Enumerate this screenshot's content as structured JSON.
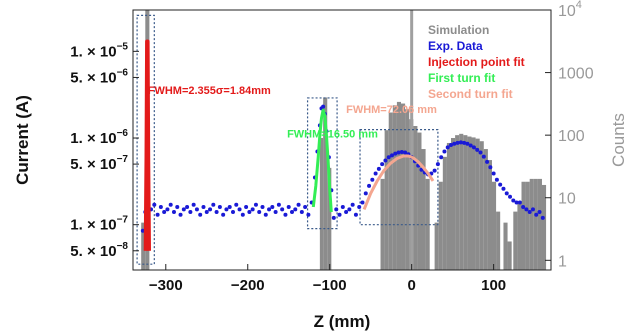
{
  "chart_data": {
    "type": "scatter",
    "xlabel": "Z (mm)",
    "ylabel_left": "Current (A)",
    "ylabel_right": "Counts",
    "xlim": [
      -340,
      170
    ],
    "ylim_left": [
      3e-08,
      3e-05
    ],
    "ylim_right": [
      0.7,
      10000
    ],
    "x_scale": "linear",
    "y_scale": "log",
    "grid": false,
    "legend_position": "top-right",
    "x_ticks": [
      {
        "value": -300,
        "label": "−300"
      },
      {
        "value": -200,
        "label": "−200"
      },
      {
        "value": -100,
        "label": "−100"
      },
      {
        "value": 0,
        "label": "0"
      },
      {
        "value": 100,
        "label": "100"
      }
    ],
    "y_ticks_left": [
      {
        "value": 1e-05,
        "mant": "1.",
        "sep": " × ",
        "exp": "−5"
      },
      {
        "value": 5e-06,
        "mant": "5.",
        "sep": " × ",
        "exp": "−6"
      },
      {
        "value": 1e-06,
        "mant": "1.",
        "sep": " × ",
        "exp": "−6"
      },
      {
        "value": 5e-07,
        "mant": "5.",
        "sep": " × ",
        "exp": "−7"
      },
      {
        "value": 1e-07,
        "mant": "1.",
        "sep": " × ",
        "exp": "−7"
      },
      {
        "value": 5e-08,
        "mant": "5.",
        "sep": " × ",
        "exp": "−8"
      }
    ],
    "y_ticks_right": [
      {
        "value": 10000,
        "label": "10",
        "exp": "4"
      },
      {
        "value": 1000,
        "label": "1000",
        "exp": ""
      },
      {
        "value": 100,
        "label": "100",
        "exp": ""
      },
      {
        "value": 10,
        "label": "10",
        "exp": ""
      },
      {
        "value": 1,
        "label": "1",
        "exp": ""
      }
    ],
    "legend": [
      {
        "name": "Simulation",
        "color": "#8c8c8c"
      },
      {
        "name": "Exp. Data",
        "color": "#1a1ad6"
      },
      {
        "name": "Injection point fit",
        "color": "#e31a1a"
      },
      {
        "name": "First turn fit",
        "color": "#33ee55"
      },
      {
        "name": "Second turn fit",
        "color": "#f4a690"
      }
    ],
    "annotations": [
      {
        "text": "FWHM=2.355σ=1.84mm",
        "color": "#e31a1a",
        "x": -322,
        "y": 3.2e-06
      },
      {
        "text": "FWHM=16.50 mm",
        "color": "#33ee55",
        "x": -152,
        "y": 1.02e-06
      },
      {
        "text": "FWHM=72.06 mm",
        "color": "#f4a690",
        "x": -80,
        "y": 1.95e-06
      }
    ],
    "series": [
      {
        "name": "Simulation",
        "kind": "histogram",
        "axis": "right",
        "color": "#8c8c8c",
        "bins": [
          [
            -330,
            -325,
            4
          ],
          [
            -325,
            -320,
            12000
          ],
          [
            -112,
            -108,
            90
          ],
          [
            -108,
            -103,
            400
          ],
          [
            -103,
            -98,
            30
          ],
          [
            -38,
            -33,
            20
          ],
          [
            -33,
            -28,
            120
          ],
          [
            -28,
            -23,
            230
          ],
          [
            -23,
            -18,
            300
          ],
          [
            -18,
            -13,
            340
          ],
          [
            -13,
            -8,
            320
          ],
          [
            -8,
            -3,
            260
          ],
          [
            -3,
            2,
            180
          ],
          [
            2,
            7,
            140
          ],
          [
            7,
            12,
            110
          ],
          [
            12,
            17,
            60
          ],
          [
            17,
            22,
            20
          ],
          [
            28,
            33,
            4
          ],
          [
            33,
            38,
            18
          ],
          [
            38,
            43,
            45
          ],
          [
            43,
            48,
            75
          ],
          [
            48,
            53,
            90
          ],
          [
            53,
            58,
            100
          ],
          [
            58,
            63,
            105
          ],
          [
            63,
            68,
            100
          ],
          [
            68,
            73,
            95
          ],
          [
            73,
            78,
            92
          ],
          [
            78,
            83,
            88
          ],
          [
            83,
            88,
            80
          ],
          [
            88,
            93,
            60
          ],
          [
            93,
            98,
            40
          ],
          [
            98,
            103,
            18
          ],
          [
            103,
            108,
            6
          ],
          [
            112,
            117,
            4
          ],
          [
            117,
            122,
            2
          ],
          [
            124,
            129,
            6
          ],
          [
            129,
            134,
            8
          ],
          [
            134,
            139,
            18
          ],
          [
            139,
            144,
            18
          ],
          [
            144,
            149,
            20
          ],
          [
            149,
            154,
            20
          ],
          [
            154,
            159,
            20
          ],
          [
            159,
            164,
            16
          ]
        ],
        "marker_line_x": 0
      },
      {
        "name": "Exp. Data",
        "kind": "scatter",
        "axis": "left",
        "color": "#1a1ad6",
        "x": [
          -328,
          -325,
          -322,
          -318,
          -314,
          -310,
          -306,
          -302,
          -298,
          -294,
          -290,
          -286,
          -282,
          -278,
          -274,
          -270,
          -266,
          -262,
          -258,
          -254,
          -250,
          -246,
          -242,
          -238,
          -234,
          -230,
          -226,
          -222,
          -218,
          -214,
          -210,
          -206,
          -202,
          -198,
          -194,
          -190,
          -186,
          -182,
          -178,
          -174,
          -170,
          -166,
          -162,
          -158,
          -154,
          -150,
          -146,
          -142,
          -138,
          -134,
          -130,
          -126,
          -122,
          -118,
          -115,
          -112,
          -110,
          -108,
          -106,
          -104,
          -101,
          -98,
          -95,
          -92,
          -88,
          -84,
          -80,
          -76,
          -72,
          -68,
          -64,
          -60,
          -56,
          -52,
          -48,
          -44,
          -40,
          -36,
          -32,
          -28,
          -24,
          -20,
          -16,
          -12,
          -8,
          -4,
          0,
          4,
          8,
          12,
          16,
          20,
          24,
          28,
          32,
          36,
          40,
          44,
          48,
          52,
          56,
          60,
          64,
          68,
          72,
          76,
          80,
          84,
          88,
          92,
          96,
          100,
          104,
          108,
          112,
          116,
          120,
          124,
          128,
          132,
          136,
          140,
          144,
          148,
          152,
          156,
          160
        ],
        "y": [
          8.5e-08,
          1.4e-07,
          1.6e-07,
          1.5e-07,
          1.7e-07,
          1.3e-07,
          1.6e-07,
          1.4e-07,
          1.5e-07,
          1.7e-07,
          1.4e-07,
          1.6e-07,
          1.3e-07,
          1.5e-07,
          1.6e-07,
          1.4e-07,
          1.7e-07,
          1.5e-07,
          1.3e-07,
          1.6e-07,
          1.4e-07,
          1.5e-07,
          1.7e-07,
          1.4e-07,
          1.6e-07,
          1.3e-07,
          1.5e-07,
          1.6e-07,
          1.4e-07,
          1.7e-07,
          1.5e-07,
          1.3e-07,
          1.6e-07,
          1.4e-07,
          1.5e-07,
          1.7e-07,
          1.4e-07,
          1.6e-07,
          1.3e-07,
          1.5e-07,
          1.6e-07,
          1.4e-07,
          1.7e-07,
          1.5e-07,
          1.3e-07,
          1.6e-07,
          1.4e-07,
          1.5e-07,
          1.7e-07,
          1.4e-07,
          1.6e-07,
          1.3e-07,
          1.8e-07,
          3.5e-07,
          7e-07,
          1.4e-06,
          2.2e-06,
          2.3e-06,
          1.9e-06,
          1.2e-06,
          6e-07,
          2.5e-07,
          1.2e-07,
          1.5e-07,
          1.3e-07,
          1.6e-07,
          1.4e-07,
          1.5e-07,
          1.7e-07,
          1.3e-07,
          1.6e-07,
          1.8e-07,
          2.3e-07,
          2.8e-07,
          3.3e-07,
          3.9e-07,
          4.4e-07,
          5e-07,
          5.5e-07,
          6e-07,
          6.3e-07,
          6.6e-07,
          6.8e-07,
          6.9e-07,
          6.8e-07,
          6.5e-07,
          6e-07,
          5.4e-07,
          4.8e-07,
          4.3e-07,
          4e-07,
          3.8e-07,
          3.9e-07,
          4.2e-07,
          5e-07,
          6e-07,
          7e-07,
          7.8e-07,
          8.3e-07,
          8.6e-07,
          8.8e-07,
          8.9e-07,
          8.8e-07,
          8.6e-07,
          8.2e-07,
          7.8e-07,
          7.3e-07,
          6.8e-07,
          6.1e-07,
          5.3e-07,
          4.6e-07,
          3.9e-07,
          3.3e-07,
          2.9e-07,
          2.6e-07,
          2.3e-07,
          2.1e-07,
          1.9e-07,
          1.8e-07,
          1.8e-07,
          1.6e-07,
          1.5e-07,
          1.4e-07,
          1.5e-07,
          1.3e-07,
          1.4e-07,
          1.2e-07
        ]
      },
      {
        "name": "Injection point fit",
        "kind": "line",
        "axis": "left",
        "color": "#e31a1a",
        "x": [
          -324.5,
          -323.5,
          -322.8,
          -322.2,
          -321.5,
          -320.5
        ],
        "y": [
          5e-08,
          6e-07,
          1.3e-05,
          1.3e-05,
          6e-07,
          5e-08
        ]
      },
      {
        "name": "First turn fit",
        "kind": "line",
        "axis": "left",
        "color": "#33ee55",
        "x": [
          -120,
          -117,
          -114,
          -112,
          -110,
          -108,
          -106,
          -104,
          -102,
          -100,
          -98
        ],
        "y": [
          1.6e-07,
          2.8e-07,
          6e-07,
          1.1e-06,
          1.7e-06,
          2.1e-06,
          1.8e-06,
          1.1e-06,
          5.5e-07,
          2.6e-07,
          1.4e-07
        ]
      },
      {
        "name": "Second turn fit",
        "kind": "line",
        "axis": "left",
        "color": "#f4a690",
        "x": [
          -58,
          -50,
          -42,
          -34,
          -26,
          -18,
          -10,
          -4,
          2,
          8,
          14,
          20,
          26
        ],
        "y": [
          1.5e-07,
          2.3e-07,
          3.2e-07,
          4.2e-07,
          5.1e-07,
          5.8e-07,
          6.2e-07,
          6.2e-07,
          5.9e-07,
          5.3e-07,
          4.6e-07,
          3.9e-07,
          3.2e-07
        ]
      }
    ],
    "highlight_boxes": [
      {
        "x": [
          -335,
          -314
        ],
        "y": [
          3.5e-08,
          2.6e-05
        ]
      },
      {
        "x": [
          -127,
          -91
        ],
        "y": [
          9e-08,
          2.9e-06
        ]
      },
      {
        "x": [
          -63,
          32
        ],
        "y": [
          1e-07,
          1.25e-06
        ]
      }
    ]
  }
}
